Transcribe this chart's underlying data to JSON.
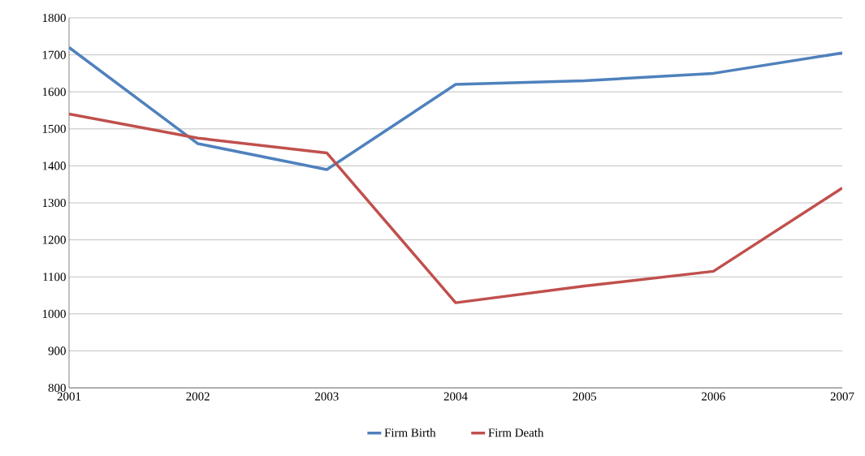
{
  "chart_data": {
    "type": "line",
    "x": [
      2001,
      2002,
      2003,
      2004,
      2005,
      2006,
      2007
    ],
    "series": [
      {
        "name": "Firm Birth",
        "color": "#4f81bd",
        "values": [
          1720,
          1460,
          1390,
          1620,
          1630,
          1650,
          1705
        ]
      },
      {
        "name": "Firm Death",
        "color": "#c0504d",
        "values": [
          1540,
          1475,
          1435,
          1030,
          1075,
          1115,
          1340
        ]
      }
    ],
    "xlim": [
      2001,
      2007
    ],
    "xticks": [
      2001,
      2002,
      2003,
      2004,
      2005,
      2006,
      2007
    ],
    "ylim": [
      800,
      1800
    ],
    "yticks": [
      800,
      900,
      1000,
      1100,
      1200,
      1300,
      1400,
      1500,
      1600,
      1700,
      1800
    ],
    "grid": "y",
    "legend": "bottom",
    "marker": "none",
    "line_style": "solid"
  }
}
